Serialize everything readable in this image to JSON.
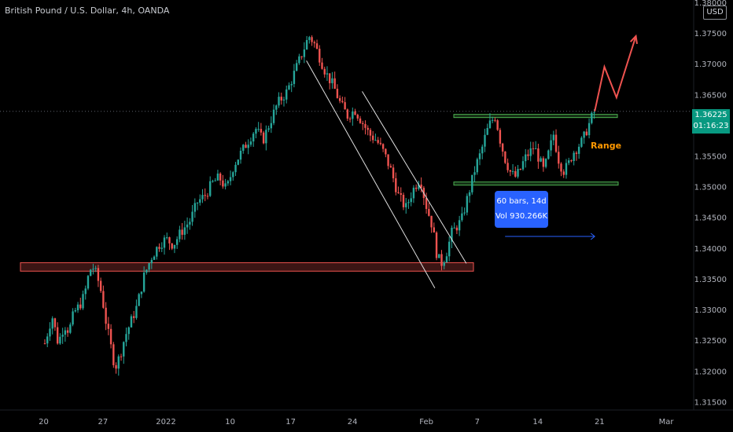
{
  "title": "British Pound / U.S. Dollar, 4h, OANDA",
  "currency_button": "USD",
  "current_price": "1.36225",
  "countdown": "01:16:23",
  "range_label": "Range",
  "measure": {
    "bars": "60 bars, 14d",
    "volume": "Vol 930.266K"
  },
  "colors": {
    "up": "#26a69a",
    "down": "#ef5350",
    "resistance": "#ef5350",
    "range": "#4caf50",
    "trend": "#e0e0e0",
    "projection": "#ef5350",
    "measure": "#2962ff",
    "badge": "#089981"
  },
  "chart_data": {
    "type": "candlestick",
    "instrument": "British Pound / U.S. Dollar",
    "timeframe": "4h",
    "source": "OANDA",
    "x_tick_labels": [
      "20",
      "27",
      "2022",
      "10",
      "17",
      "24",
      "Feb",
      "7",
      "14",
      "21",
      "Mar"
    ],
    "y_tick_labels": [
      "1.38000",
      "1.37500",
      "1.37000",
      "1.36500",
      "1.36000",
      "1.35500",
      "1.35000",
      "1.34500",
      "1.34000",
      "1.33500",
      "1.33000",
      "1.32500",
      "1.32000",
      "1.31500"
    ],
    "ylim": [
      1.3125,
      1.3805
    ],
    "last_price": 1.36225,
    "price_path": [
      [
        0,
        1.3245
      ],
      [
        0.03,
        1.329
      ],
      [
        0.055,
        1.3245
      ],
      [
        0.08,
        1.3275
      ],
      [
        0.1,
        1.3265
      ],
      [
        0.12,
        1.3295
      ],
      [
        0.14,
        1.3305
      ],
      [
        0.155,
        1.3315
      ],
      [
        0.17,
        1.3335
      ],
      [
        0.185,
        1.3365
      ],
      [
        0.2,
        1.3368
      ],
      [
        0.215,
        1.3355
      ],
      [
        0.235,
        1.3325
      ],
      [
        0.25,
        1.3285
      ],
      [
        0.265,
        1.3255
      ],
      [
        0.28,
        1.3225
      ],
      [
        0.29,
        1.3205
      ],
      [
        0.31,
        1.3225
      ],
      [
        0.33,
        1.3255
      ],
      [
        0.36,
        1.3285
      ],
      [
        0.38,
        1.3305
      ],
      [
        0.41,
        1.3355
      ],
      [
        0.44,
        1.3385
      ],
      [
        0.47,
        1.3405
      ],
      [
        0.5,
        1.3415
      ],
      [
        0.53,
        1.3405
      ],
      [
        0.56,
        1.3425
      ],
      [
        0.6,
        1.3445
      ],
      [
        0.63,
        1.3475
      ],
      [
        0.66,
        1.3485
      ],
      [
        0.69,
        1.3505
      ],
      [
        0.72,
        1.3515
      ],
      [
        0.75,
        1.3495
      ],
      [
        0.78,
        1.3535
      ],
      [
        0.81,
        1.3555
      ],
      [
        0.84,
        1.3575
      ],
      [
        0.87,
        1.3595
      ],
      [
        0.9,
        1.3575
      ],
      [
        0.93,
        1.3605
      ],
      [
        0.96,
        1.3635
      ],
      [
        1.0,
        1.3655
      ],
      [
        1.03,
        1.3685
      ],
      [
        1.06,
        1.3715
      ],
      [
        1.09,
        1.3745
      ],
      [
        1.11,
        1.3735
      ],
      [
        1.13,
        1.3715
      ],
      [
        1.16,
        1.3685
      ],
      [
        1.19,
        1.3665
      ],
      [
        1.22,
        1.3635
      ],
      [
        1.25,
        1.3615
      ],
      [
        1.28,
        1.3625
      ],
      [
        1.31,
        1.3605
      ],
      [
        1.34,
        1.3585
      ],
      [
        1.37,
        1.3575
      ],
      [
        1.4,
        1.3555
      ],
      [
        1.43,
        1.3525
      ],
      [
        1.46,
        1.3485
      ],
      [
        1.49,
        1.3465
      ],
      [
        1.52,
        1.3495
      ],
      [
        1.55,
        1.3515
      ],
      [
        1.57,
        1.3475
      ],
      [
        1.6,
        1.3435
      ],
      [
        1.62,
        1.3385
      ],
      [
        1.64,
        1.3375
      ],
      [
        1.66,
        1.3395
      ],
      [
        1.68,
        1.3425
      ],
      [
        1.7,
        1.3435
      ],
      [
        1.72,
        1.3445
      ],
      [
        1.74,
        1.3475
      ],
      [
        1.76,
        1.3505
      ],
      [
        1.78,
        1.3535
      ],
      [
        1.8,
        1.3555
      ],
      [
        1.82,
        1.3585
      ],
      [
        1.84,
        1.3605
      ],
      [
        1.86,
        1.3615
      ],
      [
        1.88,
        1.3575
      ],
      [
        1.9,
        1.3545
      ],
      [
        1.92,
        1.3525
      ],
      [
        1.94,
        1.3515
      ],
      [
        1.96,
        1.3525
      ],
      [
        1.98,
        1.3545
      ],
      [
        2.0,
        1.3555
      ],
      [
        2.02,
        1.3565
      ],
      [
        2.04,
        1.3545
      ],
      [
        2.06,
        1.3525
      ],
      [
        2.08,
        1.3555
      ],
      [
        2.1,
        1.3585
      ],
      [
        2.12,
        1.3545
      ],
      [
        2.14,
        1.3525
      ],
      [
        2.16,
        1.3535
      ],
      [
        2.18,
        1.3555
      ],
      [
        2.2,
        1.3565
      ],
      [
        2.22,
        1.3575
      ],
      [
        2.24,
        1.3595
      ],
      [
        2.26,
        1.3615
      ],
      [
        2.27,
        1.36225
      ]
    ],
    "resistance_zone": [
      1.3365,
      1.3375
    ],
    "range_box": {
      "top": 1.3615,
      "bottom": 1.3505
    },
    "trend_channel": [
      {
        "from": [
          1.08,
          1.3705
        ],
        "to": [
          1.61,
          1.3335
        ]
      },
      {
        "from": [
          1.31,
          1.3655
        ],
        "to": [
          1.74,
          1.3375
        ]
      }
    ],
    "projection_path": [
      [
        2.27,
        1.36225
      ],
      [
        2.31,
        1.3695
      ],
      [
        2.36,
        1.3645
      ],
      [
        2.44,
        1.3745
      ]
    ],
    "measure_range": {
      "x_from": 1.9,
      "x_to": 2.27,
      "bars": 60,
      "days": 14,
      "volume": "930.266K"
    }
  }
}
